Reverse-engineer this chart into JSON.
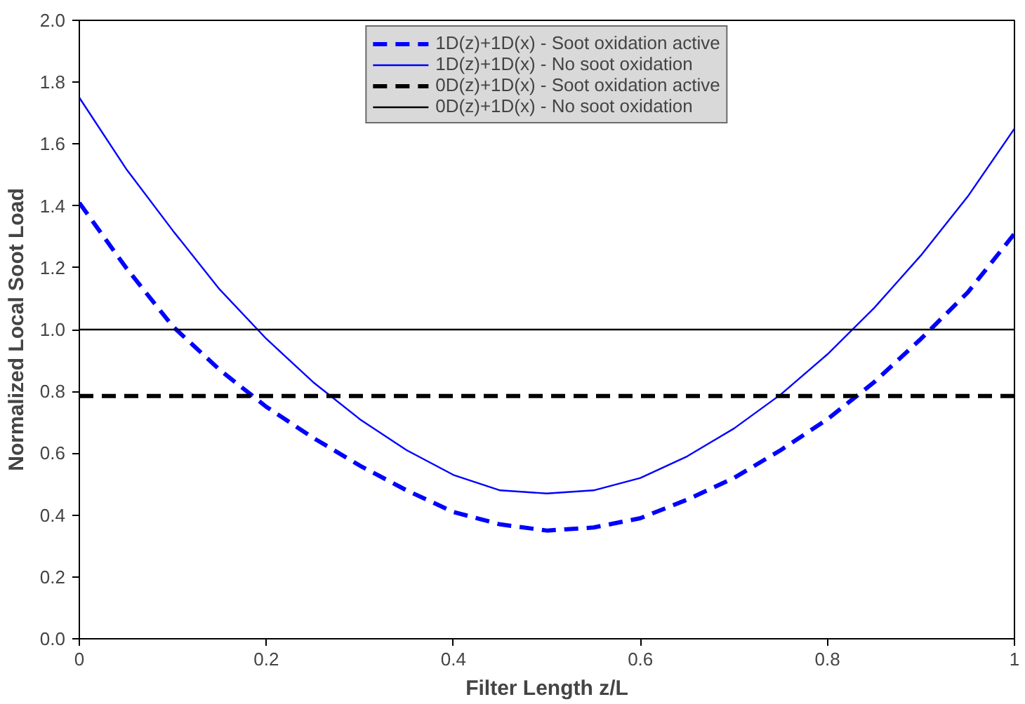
{
  "chart_data": {
    "type": "line",
    "xlabel": "Filter Length z/L",
    "ylabel": "Normalized Local Soot Load",
    "xlim": [
      0,
      1
    ],
    "ylim": [
      0,
      2
    ],
    "xticks": [
      0,
      0.2,
      0.4,
      0.6,
      0.8,
      1
    ],
    "yticks": [
      {
        "value": 0,
        "label": "0.0"
      },
      {
        "value": 0.2,
        "label": "0.2"
      },
      {
        "value": 0.4,
        "label": "0.4"
      },
      {
        "value": 0.6,
        "label": "0.6"
      },
      {
        "value": 0.8,
        "label": "0.8"
      },
      {
        "value": 1,
        "label": "1.0"
      },
      {
        "value": 1.2,
        "label": "1.2"
      },
      {
        "value": 1.4,
        "label": "1.4"
      },
      {
        "value": 1.6,
        "label": "1.6"
      },
      {
        "value": 1.8,
        "label": "1.8"
      },
      {
        "value": 2,
        "label": "2.0"
      }
    ],
    "grid": false,
    "legend": "top",
    "marker": "none",
    "x": [
      0,
      0.05,
      0.1,
      0.15,
      0.2,
      0.25,
      0.3,
      0.35,
      0.4,
      0.45,
      0.5,
      0.55,
      0.6,
      0.65,
      0.7,
      0.75,
      0.8,
      0.85,
      0.9,
      0.95,
      1
    ],
    "series": [
      {
        "name": "1D(z)+1D(x) - Soot oxidation active",
        "color": "#0000ff",
        "line_style": "dashed",
        "values": [
          1.41,
          1.2,
          1.01,
          0.87,
          0.75,
          0.65,
          0.56,
          0.48,
          0.41,
          0.37,
          0.35,
          0.36,
          0.39,
          0.45,
          0.52,
          0.61,
          0.71,
          0.83,
          0.97,
          1.12,
          1.31
        ]
      },
      {
        "name": "1D(z)+1D(x) - No soot oxidation",
        "color": "#0000ff",
        "line_style": "solid",
        "values": [
          1.75,
          1.52,
          1.32,
          1.13,
          0.97,
          0.83,
          0.71,
          0.61,
          0.53,
          0.48,
          0.47,
          0.48,
          0.52,
          0.59,
          0.68,
          0.79,
          0.92,
          1.07,
          1.24,
          1.43,
          1.65
        ]
      }
    ],
    "ref_lines": [
      {
        "axis": "y",
        "value": 0.785,
        "label": "0D(z)+1D(x) - Soot oxidation active",
        "color": "#000000",
        "line_style": "dashed"
      },
      {
        "axis": "y",
        "value": 1.0,
        "label": "0D(z)+1D(x) - No soot oxidation",
        "color": "#000000",
        "line_style": "solid"
      }
    ]
  }
}
